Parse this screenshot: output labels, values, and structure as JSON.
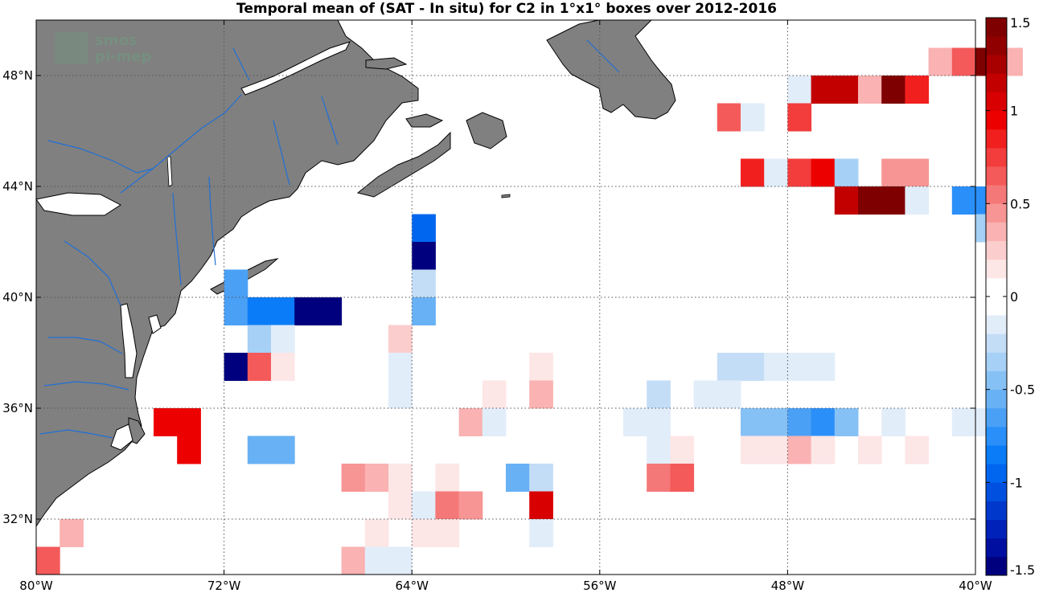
{
  "chart_data": {
    "type": "heatmap",
    "title": "Temporal mean of (SAT - In situ) for C2 in 1°x1° boxes over 2012-2016",
    "xlabel": "",
    "ylabel": "",
    "xlim": [
      -80,
      -40
    ],
    "ylim": [
      30,
      50
    ],
    "x_ticks": [
      -80,
      -72,
      -64,
      -56,
      -48,
      -40
    ],
    "x_tick_labels": [
      "80°W",
      "72°W",
      "64°W",
      "56°W",
      "48°W",
      "40°W"
    ],
    "y_ticks": [
      32,
      36,
      40,
      44,
      48
    ],
    "y_tick_labels": [
      "32°N",
      "36°N",
      "40°N",
      "44°N",
      "48°N"
    ],
    "grid": true,
    "colorbar": {
      "min": -1.5,
      "max": 1.5,
      "ticks": [
        1.5,
        1,
        0.5,
        0,
        -0.5,
        -1,
        -1.5
      ],
      "tick_labels": [
        "1.5",
        "1",
        "0.5",
        "0",
        "-0.5",
        "-1",
        "-1.5"
      ],
      "colors": [
        "#00007f",
        "#000fa0",
        "#0022b8",
        "#0038cc",
        "#0050e0",
        "#0066ef",
        "#0a7cf8",
        "#2a8ff8",
        "#4aa0f5",
        "#68b1f5",
        "#86c1f5",
        "#a6d0f5",
        "#c4ddf7",
        "#e2edfa",
        "#ffffff",
        "#ffffff",
        "#fde6e6",
        "#fccdcd",
        "#fab2b2",
        "#f79595",
        "#f57878",
        "#f45a5a",
        "#f33c3c",
        "#f21f1f",
        "#ed0000",
        "#d80000",
        "#c20000",
        "#a80000",
        "#900000",
        "#7f0000"
      ]
    },
    "cells": [
      {
        "lon": -42,
        "lat": 48,
        "value": 0.3
      },
      {
        "lon": -41,
        "lat": 48,
        "value": 0.6
      },
      {
        "lon": -40,
        "lat": 48,
        "value": 1.45
      },
      {
        "lon": -39,
        "lat": 48,
        "value": 0.3
      },
      {
        "lon": -48,
        "lat": 47,
        "value": -0.1
      },
      {
        "lon": -47,
        "lat": 47,
        "value": 1.1
      },
      {
        "lon": -46,
        "lat": 47,
        "value": 1.1
      },
      {
        "lon": -45,
        "lat": 47,
        "value": 0.3
      },
      {
        "lon": -44,
        "lat": 47,
        "value": 1.45
      },
      {
        "lon": -43,
        "lat": 47,
        "value": 0.85
      },
      {
        "lon": -51,
        "lat": 46,
        "value": 0.6
      },
      {
        "lon": -50,
        "lat": 46,
        "value": -0.1
      },
      {
        "lon": -48,
        "lat": 46,
        "value": 0.75
      },
      {
        "lon": -50,
        "lat": 44,
        "value": 0.8
      },
      {
        "lon": -49,
        "lat": 44,
        "value": -0.1
      },
      {
        "lon": -48,
        "lat": 44,
        "value": 0.75
      },
      {
        "lon": -47,
        "lat": 44,
        "value": 0.95
      },
      {
        "lon": -46,
        "lat": 44,
        "value": -0.35
      },
      {
        "lon": -44,
        "lat": 44,
        "value": 0.4
      },
      {
        "lon": -43,
        "lat": 44,
        "value": 0.4
      },
      {
        "lon": -46,
        "lat": 43,
        "value": 1.15
      },
      {
        "lon": -45,
        "lat": 43,
        "value": 1.45
      },
      {
        "lon": -44,
        "lat": 43,
        "value": 1.45
      },
      {
        "lon": -43,
        "lat": 43,
        "value": -0.1
      },
      {
        "lon": -41,
        "lat": 43,
        "value": -0.75
      },
      {
        "lon": -40,
        "lat": 43,
        "value": -0.75
      },
      {
        "lon": -40,
        "lat": 42,
        "value": -0.35
      },
      {
        "lon": -64,
        "lat": 42,
        "value": -1.0
      },
      {
        "lon": -64,
        "lat": 41,
        "value": -1.45
      },
      {
        "lon": -64,
        "lat": 40,
        "value": -0.25
      },
      {
        "lon": -64,
        "lat": 39,
        "value": -0.55
      },
      {
        "lon": -72,
        "lat": 40,
        "value": -0.65
      },
      {
        "lon": -72,
        "lat": 39,
        "value": -0.65
      },
      {
        "lon": -71,
        "lat": 39,
        "value": -0.85
      },
      {
        "lon": -70,
        "lat": 39,
        "value": -0.85
      },
      {
        "lon": -69,
        "lat": 39,
        "value": -1.45
      },
      {
        "lon": -68,
        "lat": 39,
        "value": -1.45
      },
      {
        "lon": -71,
        "lat": 38,
        "value": -0.3
      },
      {
        "lon": -70,
        "lat": 38,
        "value": -0.2
      },
      {
        "lon": -65,
        "lat": 38,
        "value": 0.2
      },
      {
        "lon": -72,
        "lat": 37,
        "value": -1.45
      },
      {
        "lon": -71,
        "lat": 37,
        "value": 0.6
      },
      {
        "lon": -70,
        "lat": 37,
        "value": 0.15
      },
      {
        "lon": -65,
        "lat": 37,
        "value": -0.1
      },
      {
        "lon": -59,
        "lat": 37,
        "value": 0.15
      },
      {
        "lon": -51,
        "lat": 37,
        "value": -0.25
      },
      {
        "lon": -50,
        "lat": 37,
        "value": -0.25
      },
      {
        "lon": -49,
        "lat": 37,
        "value": -0.2
      },
      {
        "lon": -48,
        "lat": 37,
        "value": -0.15
      },
      {
        "lon": -47,
        "lat": 37,
        "value": -0.15
      },
      {
        "lon": -65,
        "lat": 36,
        "value": -0.1
      },
      {
        "lon": -61,
        "lat": 36,
        "value": 0.15
      },
      {
        "lon": -59,
        "lat": 36,
        "value": 0.3
      },
      {
        "lon": -54,
        "lat": 36,
        "value": -0.25
      },
      {
        "lon": -52,
        "lat": 36,
        "value": -0.15
      },
      {
        "lon": -51,
        "lat": 36,
        "value": -0.15
      },
      {
        "lon": -75,
        "lat": 35,
        "value": 0.95
      },
      {
        "lon": -74,
        "lat": 35,
        "value": 0.95
      },
      {
        "lon": -62,
        "lat": 35,
        "value": 0.35
      },
      {
        "lon": -61,
        "lat": 35,
        "value": -0.1
      },
      {
        "lon": -55,
        "lat": 35,
        "value": -0.2
      },
      {
        "lon": -54,
        "lat": 35,
        "value": -0.2
      },
      {
        "lon": -50,
        "lat": 35,
        "value": -0.5
      },
      {
        "lon": -49,
        "lat": 35,
        "value": -0.5
      },
      {
        "lon": -48,
        "lat": 35,
        "value": -0.65
      },
      {
        "lon": -47,
        "lat": 35,
        "value": -0.75
      },
      {
        "lon": -46,
        "lat": 35,
        "value": -0.45
      },
      {
        "lon": -44,
        "lat": 35,
        "value": -0.1
      },
      {
        "lon": -41,
        "lat": 35,
        "value": -0.1
      },
      {
        "lon": -40,
        "lat": 35,
        "value": -0.1
      },
      {
        "lon": -74,
        "lat": 34,
        "value": 0.95
      },
      {
        "lon": -71,
        "lat": 34,
        "value": -0.55
      },
      {
        "lon": -70,
        "lat": 34,
        "value": -0.55
      },
      {
        "lon": -54,
        "lat": 34,
        "value": -0.1
      },
      {
        "lon": -53,
        "lat": 34,
        "value": 0.15
      },
      {
        "lon": -50,
        "lat": 34,
        "value": 0.15
      },
      {
        "lon": -49,
        "lat": 34,
        "value": 0.15
      },
      {
        "lon": -48,
        "lat": 34,
        "value": 0.3
      },
      {
        "lon": -47,
        "lat": 34,
        "value": 0.15
      },
      {
        "lon": -45,
        "lat": 34,
        "value": 0.15
      },
      {
        "lon": -43,
        "lat": 34,
        "value": 0.15
      },
      {
        "lon": -67,
        "lat": 33,
        "value": 0.45
      },
      {
        "lon": -66,
        "lat": 33,
        "value": 0.3
      },
      {
        "lon": -65,
        "lat": 33,
        "value": 0.15
      },
      {
        "lon": -63,
        "lat": 33,
        "value": 0.15
      },
      {
        "lon": -60,
        "lat": 33,
        "value": -0.6
      },
      {
        "lon": -59,
        "lat": 33,
        "value": -0.25
      },
      {
        "lon": -54,
        "lat": 33,
        "value": 0.5
      },
      {
        "lon": -53,
        "lat": 33,
        "value": 0.65
      },
      {
        "lon": -65,
        "lat": 32,
        "value": 0.15
      },
      {
        "lon": -64,
        "lat": 32,
        "value": -0.15
      },
      {
        "lon": -63,
        "lat": 32,
        "value": 0.55
      },
      {
        "lon": -62,
        "lat": 32,
        "value": 0.45
      },
      {
        "lon": -59,
        "lat": 32,
        "value": 1.05
      },
      {
        "lon": -79,
        "lat": 31,
        "value": 0.3
      },
      {
        "lon": -66,
        "lat": 31,
        "value": 0.15
      },
      {
        "lon": -64,
        "lat": 31,
        "value": 0.15
      },
      {
        "lon": -63,
        "lat": 31,
        "value": 0.15
      },
      {
        "lon": -59,
        "lat": 31,
        "value": -0.1
      },
      {
        "lon": -80,
        "lat": 30,
        "value": 0.65
      },
      {
        "lon": -67,
        "lat": 30,
        "value": 0.3
      },
      {
        "lon": -66,
        "lat": 30,
        "value": -0.1
      },
      {
        "lon": -65,
        "lat": 30,
        "value": -0.1
      }
    ]
  },
  "colors": {
    "land": "#808080",
    "coast": "#000000",
    "rivers": "#1f6fd6",
    "grid": "#555555"
  },
  "logo": {
    "line1": "smos",
    "line2": "pi-mep"
  }
}
